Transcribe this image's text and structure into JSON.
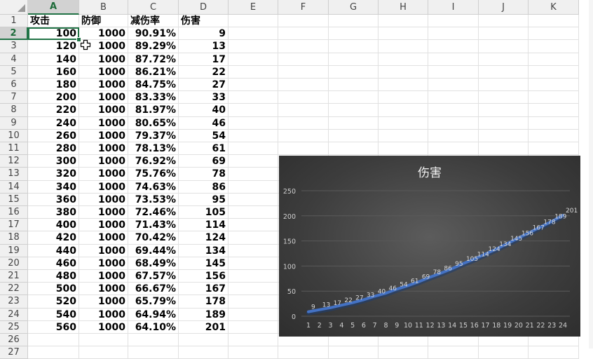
{
  "sheet": {
    "columns": [
      "A",
      "B",
      "C",
      "D",
      "E",
      "F",
      "G",
      "H",
      "I",
      "J",
      "K"
    ],
    "row_numbers": [
      "1",
      "2",
      "3",
      "4",
      "5",
      "6",
      "7",
      "8",
      "9",
      "10",
      "11",
      "12",
      "13",
      "14",
      "15",
      "16",
      "17",
      "18",
      "19",
      "20",
      "21",
      "22",
      "23",
      "24",
      "25",
      "26",
      "27"
    ],
    "headers": [
      "攻击",
      "防御",
      "减伤率",
      "伤害"
    ],
    "rows": [
      [
        "100",
        "1000",
        "90.91%",
        "9"
      ],
      [
        "120",
        "1000",
        "89.29%",
        "13"
      ],
      [
        "140",
        "1000",
        "87.72%",
        "17"
      ],
      [
        "160",
        "1000",
        "86.21%",
        "22"
      ],
      [
        "180",
        "1000",
        "84.75%",
        "27"
      ],
      [
        "200",
        "1000",
        "83.33%",
        "33"
      ],
      [
        "220",
        "1000",
        "81.97%",
        "40"
      ],
      [
        "240",
        "1000",
        "80.65%",
        "46"
      ],
      [
        "260",
        "1000",
        "79.37%",
        "54"
      ],
      [
        "280",
        "1000",
        "78.13%",
        "61"
      ],
      [
        "300",
        "1000",
        "76.92%",
        "69"
      ],
      [
        "320",
        "1000",
        "75.76%",
        "78"
      ],
      [
        "340",
        "1000",
        "74.63%",
        "86"
      ],
      [
        "360",
        "1000",
        "73.53%",
        "95"
      ],
      [
        "380",
        "1000",
        "72.46%",
        "105"
      ],
      [
        "400",
        "1000",
        "71.43%",
        "114"
      ],
      [
        "420",
        "1000",
        "70.42%",
        "124"
      ],
      [
        "440",
        "1000",
        "69.44%",
        "134"
      ],
      [
        "460",
        "1000",
        "68.49%",
        "145"
      ],
      [
        "480",
        "1000",
        "67.57%",
        "156"
      ],
      [
        "500",
        "1000",
        "66.67%",
        "167"
      ],
      [
        "520",
        "1000",
        "65.79%",
        "178"
      ],
      [
        "540",
        "1000",
        "64.94%",
        "189"
      ],
      [
        "560",
        "1000",
        "64.10%",
        "201"
      ]
    ],
    "active_cell": "A2",
    "selected_column": "A",
    "selected_row": "2"
  },
  "chart_data": {
    "type": "line",
    "title": "伤害",
    "x": [
      1,
      2,
      3,
      4,
      5,
      6,
      7,
      8,
      9,
      10,
      11,
      12,
      13,
      14,
      15,
      16,
      17,
      18,
      19,
      20,
      21,
      22,
      23,
      24
    ],
    "series": [
      {
        "values": [
          9,
          13,
          17,
          22,
          27,
          33,
          40,
          46,
          54,
          61,
          69,
          78,
          86,
          95,
          105,
          114,
          124,
          134,
          145,
          156,
          167,
          178,
          189,
          201
        ]
      }
    ],
    "ylim": [
      0,
      250
    ],
    "yticks": [
      0,
      50,
      100,
      150,
      200,
      250
    ],
    "grid": true,
    "data_labels": true,
    "line_color": "#4472c4",
    "background_color": "#404040"
  }
}
